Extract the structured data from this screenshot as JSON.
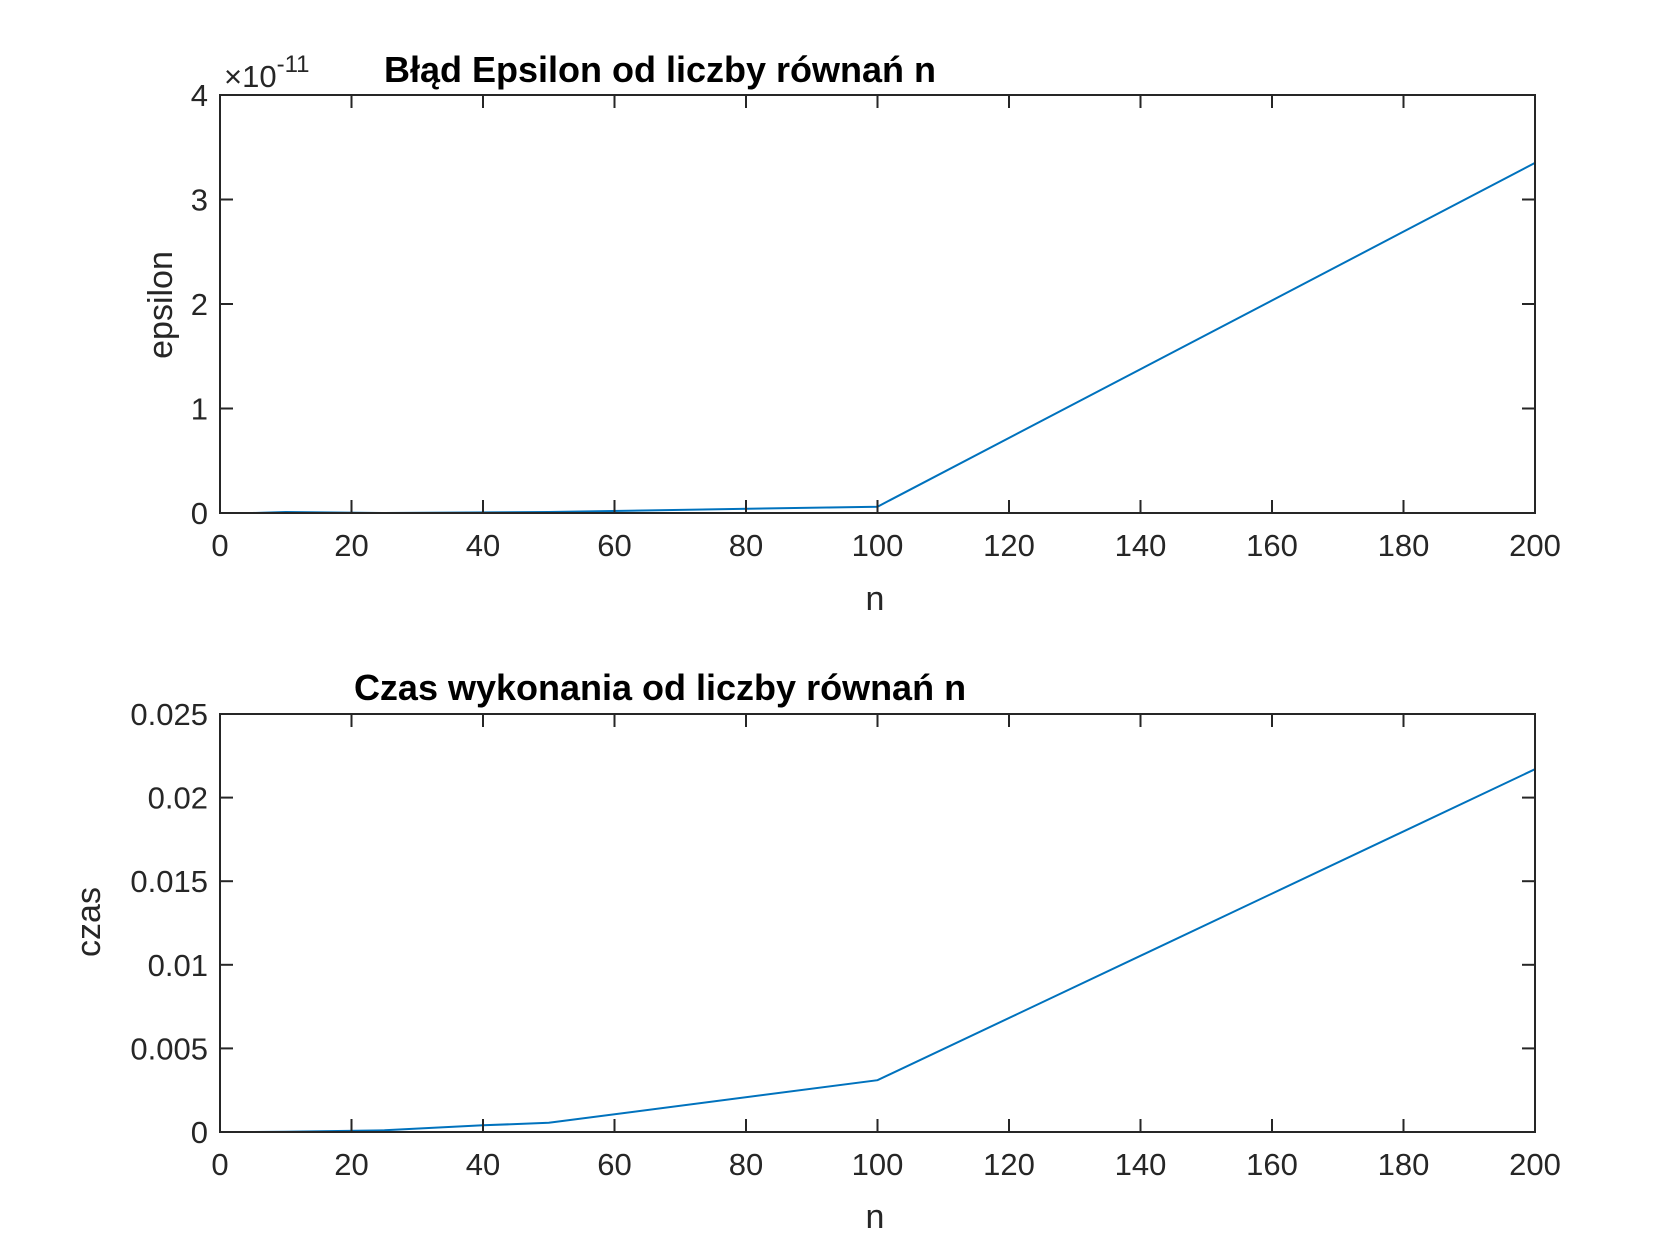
{
  "chart_data": [
    {
      "type": "line",
      "title": "Błąd Epsilon od liczby równań n",
      "xlabel": "n",
      "ylabel": "epsilon",
      "exponent_label": "×10",
      "exponent_power": "-11",
      "xlim": [
        0,
        200
      ],
      "ylim": [
        0,
        4
      ],
      "xticks": [
        0,
        20,
        40,
        60,
        80,
        100,
        120,
        140,
        160,
        180,
        200
      ],
      "yticks": [
        0,
        1,
        2,
        3,
        4
      ],
      "ytick_labels": [
        "0",
        "1",
        "2",
        "3",
        "4"
      ],
      "grid": false,
      "series": [
        {
          "color": "#0072BD",
          "x": [
            5,
            10,
            25,
            50,
            100,
            200
          ],
          "y": [
            0.0,
            0.01,
            0.0,
            0.01,
            0.06,
            3.35
          ]
        }
      ]
    },
    {
      "type": "line",
      "title": "Czas wykonania od liczby równań n",
      "xlabel": "n",
      "ylabel": "czas",
      "xlim": [
        0,
        200
      ],
      "ylim": [
        0,
        0.025
      ],
      "xticks": [
        0,
        20,
        40,
        60,
        80,
        100,
        120,
        140,
        160,
        180,
        200
      ],
      "yticks": [
        0,
        0.005,
        0.01,
        0.015,
        0.02,
        0.025
      ],
      "ytick_labels": [
        "0",
        "0.005",
        "0.01",
        "0.015",
        "0.02",
        "0.025"
      ],
      "grid": false,
      "series": [
        {
          "color": "#0072BD",
          "x": [
            5,
            10,
            25,
            40,
            50,
            100,
            200
          ],
          "y": [
            0.0,
            2e-05,
            0.0001,
            0.0004,
            0.00055,
            0.0031,
            0.0217
          ]
        }
      ]
    }
  ]
}
